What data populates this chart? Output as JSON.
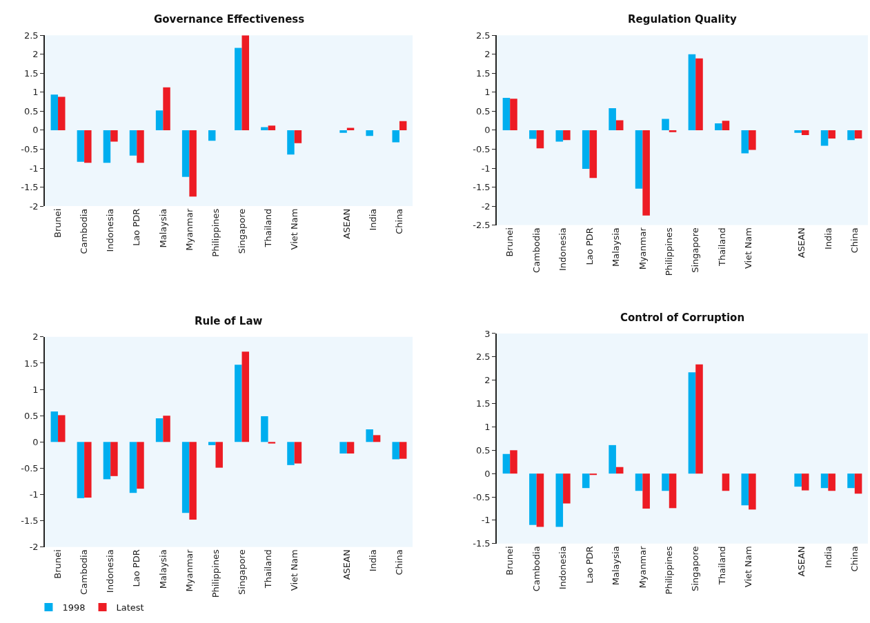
{
  "chart_data": [
    {
      "type": "bar",
      "title": "Governance Effectiveness",
      "categories": [
        "Brunei",
        "Cambodia",
        "Indonesia",
        "Lao PDR",
        "Malaysia",
        "Myanmar",
        "Philippines",
        "Singapore",
        "Thailand",
        "Viet Nam",
        null,
        "ASEAN",
        "India",
        "China"
      ],
      "ylim": [
        -2,
        2.5
      ],
      "yticks": [
        -2,
        -1.5,
        -1,
        -0.5,
        0,
        0.5,
        1,
        1.5,
        2,
        2.5
      ],
      "legend": "bottom left",
      "series": [
        {
          "name": "1998",
          "color": "#00aeef",
          "values": [
            0.94,
            -0.83,
            -0.86,
            -0.67,
            0.52,
            -1.23,
            -0.28,
            2.17,
            0.08,
            -0.64,
            null,
            -0.07,
            -0.15,
            -0.32
          ]
        },
        {
          "name": "Latest",
          "color": "#ed1c24",
          "values": [
            0.88,
            -0.86,
            -0.3,
            -0.86,
            1.13,
            -1.75,
            null,
            2.5,
            0.12,
            -0.34,
            null,
            0.06,
            null,
            0.24
          ]
        }
      ]
    },
    {
      "type": "bar",
      "title": "Regulation Quality",
      "categories": [
        "Brunei",
        "Cambodia",
        "Indonesia",
        "Lao PDR",
        "Malaysia",
        "Myanmar",
        "Philippines",
        "Singapore",
        "Thailand",
        "Viet Nam",
        null,
        "ASEAN",
        "India",
        "China"
      ],
      "ylim": [
        -2.5,
        2.5
      ],
      "yticks": [
        -2.5,
        -2,
        -1.5,
        -1,
        -0.5,
        0,
        0.5,
        1,
        1.5,
        2,
        2.5
      ],
      "series": [
        {
          "color": "#00aeef",
          "values": [
            0.85,
            -0.23,
            -0.3,
            -1.02,
            0.58,
            -1.54,
            0.3,
            2.0,
            0.18,
            -0.61,
            null,
            -0.07,
            -0.41,
            -0.26
          ]
        },
        {
          "color": "#ed1c24",
          "values": [
            0.83,
            -0.48,
            -0.26,
            -1.26,
            0.26,
            -2.25,
            -0.05,
            1.89,
            0.25,
            -0.52,
            null,
            -0.13,
            -0.22,
            -0.22
          ]
        }
      ]
    },
    {
      "type": "bar",
      "title": "Rule of Law",
      "categories": [
        "Brunei",
        "Cambodia",
        "Indonesia",
        "Lao PDR",
        "Malaysia",
        "Myanmar",
        "Philippines",
        "Singapore",
        "Thailand",
        "Viet Nam",
        null,
        "ASEAN",
        "India",
        "China"
      ],
      "ylim": [
        -2,
        2
      ],
      "yticks": [
        -2,
        -1.5,
        -1,
        -0.5,
        0,
        0.5,
        1,
        1.5,
        2
      ],
      "series": [
        {
          "color": "#00aeef",
          "values": [
            0.58,
            -1.07,
            -0.71,
            -0.97,
            0.45,
            -1.35,
            -0.06,
            1.47,
            0.49,
            -0.44,
            null,
            -0.22,
            0.24,
            -0.33
          ]
        },
        {
          "color": "#ed1c24",
          "values": [
            0.51,
            -1.06,
            -0.65,
            -0.89,
            0.5,
            -1.48,
            -0.49,
            1.72,
            -0.03,
            -0.41,
            null,
            -0.22,
            0.13,
            -0.32
          ]
        }
      ]
    },
    {
      "type": "bar",
      "title": "Control of Corruption",
      "categories": [
        "Brunei",
        "Cambodia",
        "Indonesia",
        "Lao PDR",
        "Malaysia",
        "Myanmar",
        "Philippines",
        "Singapore",
        "Thailand",
        "Viet Nam",
        null,
        "ASEAN",
        "India",
        "China"
      ],
      "ylim": [
        -1.5,
        3
      ],
      "yticks": [
        -1.5,
        -1,
        -0.5,
        0,
        0.5,
        1,
        1.5,
        2,
        2.5,
        3
      ],
      "series": [
        {
          "color": "#00aeef",
          "values": [
            0.42,
            -1.1,
            -1.14,
            -0.31,
            0.61,
            -0.37,
            -0.37,
            2.17,
            null,
            -0.68,
            null,
            -0.28,
            -0.31,
            -0.31
          ]
        },
        {
          "color": "#ed1c24",
          "values": [
            0.5,
            -1.14,
            -0.64,
            -0.03,
            0.14,
            -0.75,
            -0.74,
            2.34,
            -0.37,
            -0.77,
            null,
            -0.36,
            -0.37,
            -0.43
          ]
        }
      ]
    }
  ]
}
